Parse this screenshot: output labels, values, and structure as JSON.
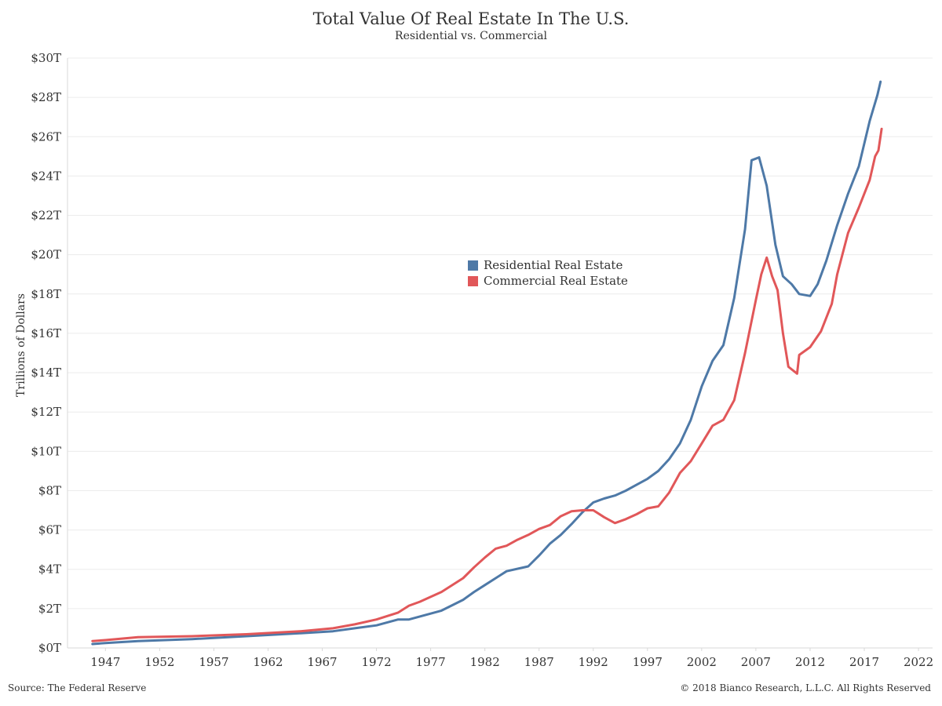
{
  "chart_data": {
    "type": "line",
    "title": "Total Value Of Real Estate In The U.S.",
    "subtitle": "Residential vs. Commercial",
    "ylabel": "Trillions of Dollars",
    "xlabel": "",
    "xlim": [
      1943.5,
      2023.3
    ],
    "ylim": [
      0,
      30
    ],
    "x_ticks": [
      1947,
      1952,
      1957,
      1962,
      1967,
      1972,
      1977,
      1982,
      1987,
      1992,
      1997,
      2002,
      2007,
      2012,
      2017,
      2022
    ],
    "y_ticks": [
      {
        "value": 0,
        "label": "$0T"
      },
      {
        "value": 2,
        "label": "$2T"
      },
      {
        "value": 4,
        "label": "$4T"
      },
      {
        "value": 6,
        "label": "$6T"
      },
      {
        "value": 8,
        "label": "$8T"
      },
      {
        "value": 10,
        "label": "$10T"
      },
      {
        "value": 12,
        "label": "$12T"
      },
      {
        "value": 14,
        "label": "$14T"
      },
      {
        "value": 16,
        "label": "$16T"
      },
      {
        "value": 18,
        "label": "$18T"
      },
      {
        "value": 20,
        "label": "$20T"
      },
      {
        "value": 22,
        "label": "$22T"
      },
      {
        "value": 24,
        "label": "$24T"
      },
      {
        "value": 26,
        "label": "$26T"
      },
      {
        "value": 28,
        "label": "$28T"
      },
      {
        "value": 30,
        "label": "$30T"
      }
    ],
    "grid": "horizontal",
    "legend_position": "center",
    "series": [
      {
        "name": "Residential Real Estate",
        "color": "#4e79a7",
        "points": [
          [
            1945.8,
            0.2
          ],
          [
            1947,
            0.25
          ],
          [
            1950,
            0.35
          ],
          [
            1955,
            0.45
          ],
          [
            1960,
            0.6
          ],
          [
            1965,
            0.75
          ],
          [
            1968,
            0.85
          ],
          [
            1970,
            1.0
          ],
          [
            1972,
            1.15
          ],
          [
            1974,
            1.45
          ],
          [
            1975,
            1.45
          ],
          [
            1976,
            1.6
          ],
          [
            1978,
            1.9
          ],
          [
            1980,
            2.45
          ],
          [
            1981,
            2.85
          ],
          [
            1982,
            3.2
          ],
          [
            1983,
            3.55
          ],
          [
            1984,
            3.9
          ],
          [
            1986,
            4.15
          ],
          [
            1987,
            4.7
          ],
          [
            1988,
            5.3
          ],
          [
            1989,
            5.75
          ],
          [
            1990,
            6.3
          ],
          [
            1991,
            6.9
          ],
          [
            1992,
            7.4
          ],
          [
            1993,
            7.6
          ],
          [
            1994,
            7.75
          ],
          [
            1995,
            8.0
          ],
          [
            1996,
            8.3
          ],
          [
            1997,
            8.6
          ],
          [
            1998,
            9.0
          ],
          [
            1999,
            9.6
          ],
          [
            2000,
            10.4
          ],
          [
            2001,
            11.6
          ],
          [
            2002,
            13.3
          ],
          [
            2003,
            14.6
          ],
          [
            2004,
            15.4
          ],
          [
            2005,
            17.8
          ],
          [
            2006,
            21.3
          ],
          [
            2006.6,
            24.8
          ],
          [
            2007.3,
            24.95
          ],
          [
            2008,
            23.5
          ],
          [
            2008.8,
            20.5
          ],
          [
            2009.5,
            18.9
          ],
          [
            2010.3,
            18.5
          ],
          [
            2011,
            18.0
          ],
          [
            2012,
            17.9
          ],
          [
            2012.7,
            18.5
          ],
          [
            2013.5,
            19.7
          ],
          [
            2014.5,
            21.5
          ],
          [
            2015.5,
            23.1
          ],
          [
            2016.5,
            24.5
          ],
          [
            2017.5,
            26.8
          ],
          [
            2018.2,
            28.1
          ],
          [
            2018.5,
            28.8
          ]
        ]
      },
      {
        "name": "Commercial Real Estate",
        "color": "#e15759",
        "points": [
          [
            1945.8,
            0.35
          ],
          [
            1947,
            0.4
          ],
          [
            1950,
            0.55
          ],
          [
            1955,
            0.6
          ],
          [
            1960,
            0.7
          ],
          [
            1965,
            0.85
          ],
          [
            1968,
            1.0
          ],
          [
            1970,
            1.2
          ],
          [
            1972,
            1.45
          ],
          [
            1974,
            1.8
          ],
          [
            1975,
            2.15
          ],
          [
            1976,
            2.35
          ],
          [
            1978,
            2.85
          ],
          [
            1980,
            3.55
          ],
          [
            1981,
            4.1
          ],
          [
            1982,
            4.6
          ],
          [
            1983,
            5.05
          ],
          [
            1984,
            5.2
          ],
          [
            1985,
            5.5
          ],
          [
            1986,
            5.75
          ],
          [
            1987,
            6.05
          ],
          [
            1988,
            6.25
          ],
          [
            1989,
            6.7
          ],
          [
            1990,
            6.95
          ],
          [
            1991,
            7.0
          ],
          [
            1992,
            7.0
          ],
          [
            1993,
            6.65
          ],
          [
            1994,
            6.35
          ],
          [
            1995,
            6.55
          ],
          [
            1996,
            6.8
          ],
          [
            1997,
            7.1
          ],
          [
            1998,
            7.2
          ],
          [
            1999,
            7.9
          ],
          [
            2000,
            8.9
          ],
          [
            2001,
            9.5
          ],
          [
            2002,
            10.4
          ],
          [
            2003,
            11.3
          ],
          [
            2004,
            11.6
          ],
          [
            2005,
            12.6
          ],
          [
            2006,
            15.0
          ],
          [
            2007,
            17.7
          ],
          [
            2007.5,
            19.0
          ],
          [
            2008,
            19.85
          ],
          [
            2008.5,
            18.9
          ],
          [
            2009,
            18.2
          ],
          [
            2009.5,
            16.0
          ],
          [
            2010,
            14.3
          ],
          [
            2010.8,
            13.95
          ],
          [
            2011,
            14.9
          ],
          [
            2012,
            15.3
          ],
          [
            2013,
            16.1
          ],
          [
            2014,
            17.5
          ],
          [
            2014.5,
            19.0
          ],
          [
            2015.5,
            21.1
          ],
          [
            2016.5,
            22.4
          ],
          [
            2017.5,
            23.8
          ],
          [
            2018,
            25.0
          ],
          [
            2018.3,
            25.3
          ],
          [
            2018.6,
            26.4
          ]
        ]
      }
    ]
  },
  "footer": {
    "source": "Source: The Federal Reserve",
    "copyright": "© 2018 Bianco Research, L.L.C. All Rights Reserved"
  }
}
